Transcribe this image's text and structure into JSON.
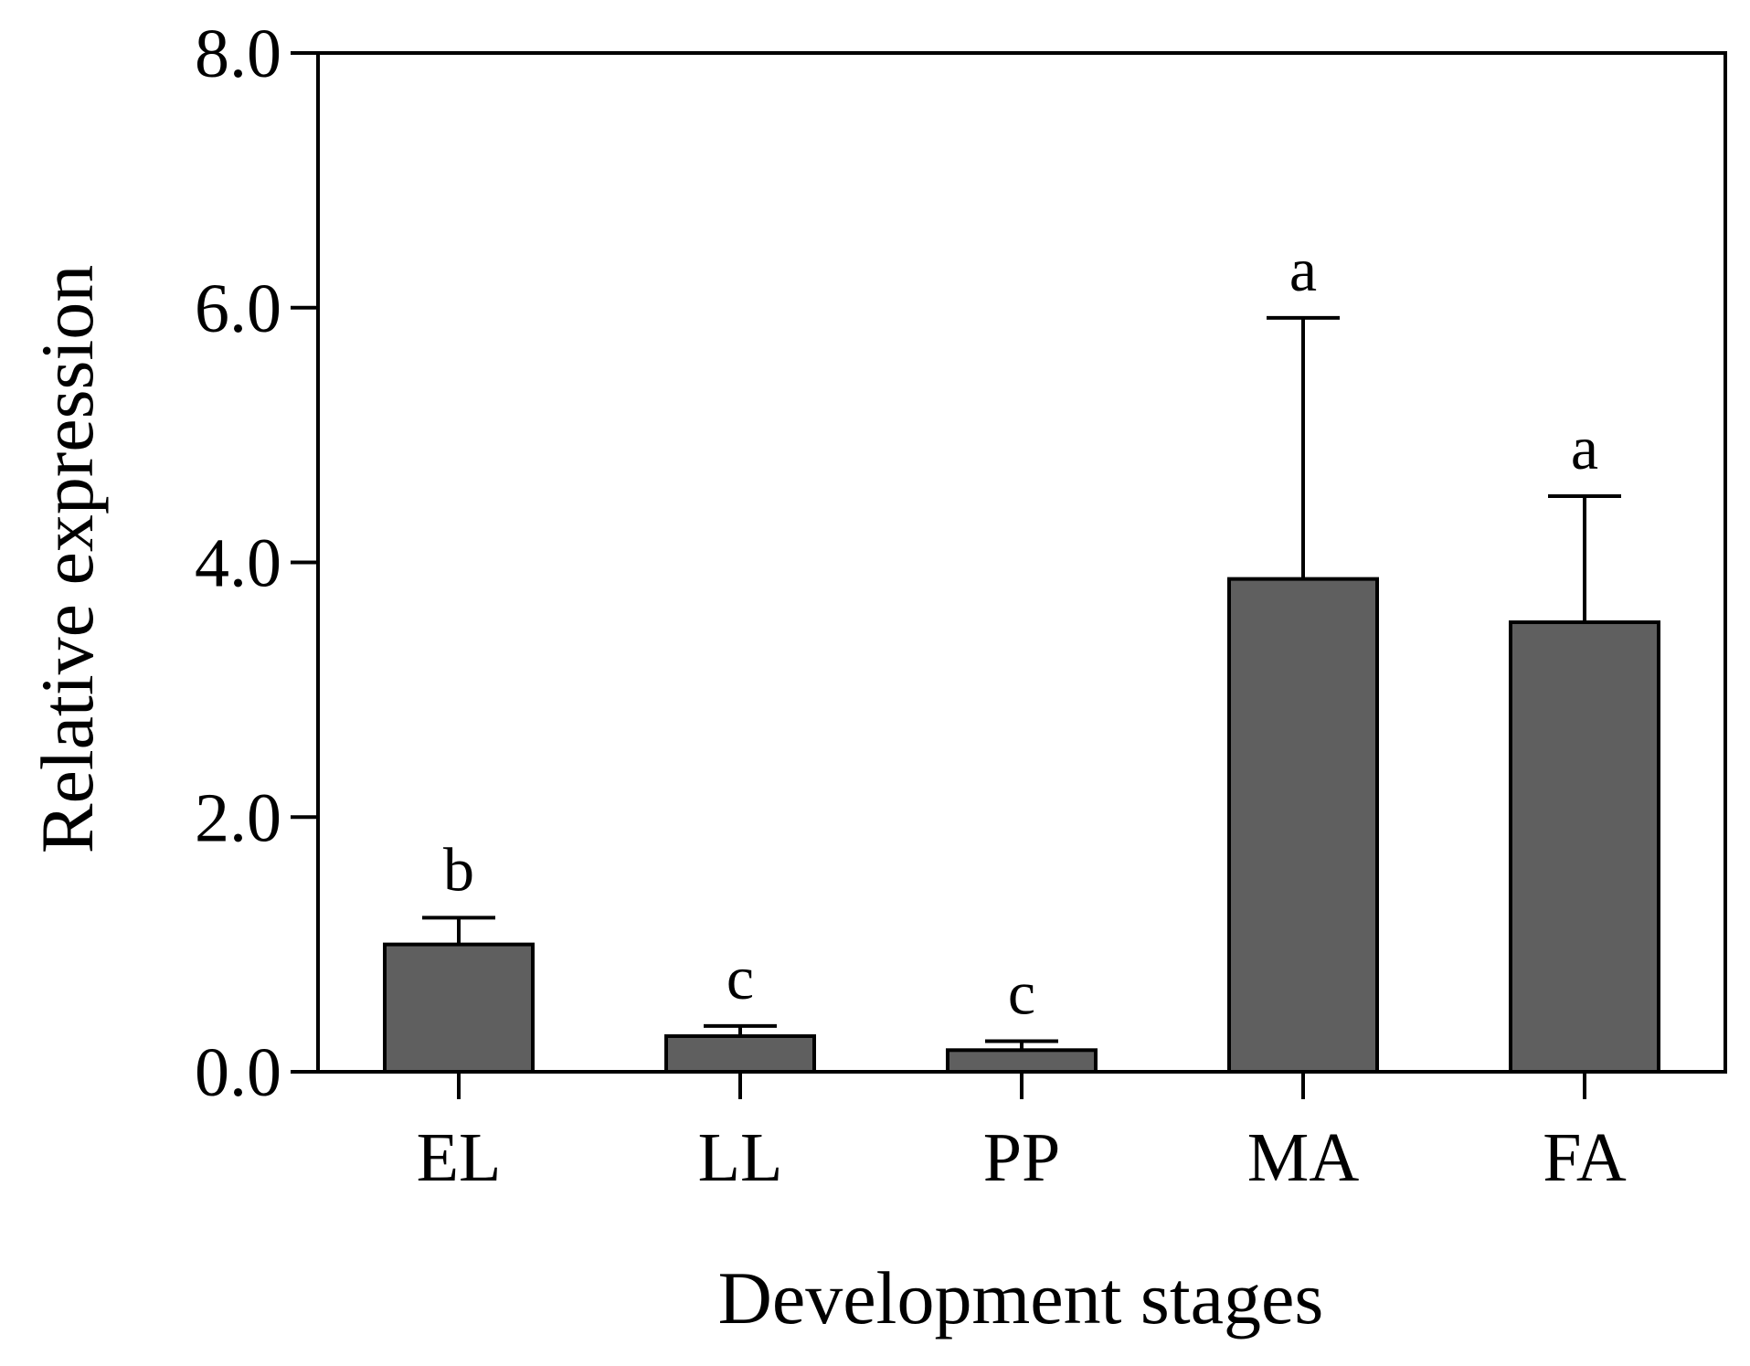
{
  "chart_data": {
    "type": "bar",
    "title": "",
    "xlabel": "Development stages",
    "ylabel": "Relative expression",
    "ylim": [
      0,
      8
    ],
    "yticks": [
      0,
      2,
      4,
      6,
      8
    ],
    "ytick_labels": [
      "0.0",
      "2.0",
      "4.0",
      "6.0",
      "8.0"
    ],
    "categories": [
      "EL",
      "LL",
      "PP",
      "MA",
      "FA"
    ],
    "values": [
      1.0,
      0.28,
      0.17,
      3.87,
      3.53
    ],
    "errors": [
      0.21,
      0.08,
      0.07,
      2.05,
      0.99
    ],
    "significance": [
      "b",
      "c",
      "c",
      "a",
      "a"
    ],
    "grid": false,
    "legend": "none",
    "colors": {
      "bar_fill": "#5f5f5f",
      "stroke": "#000000",
      "background": "#ffffff"
    }
  }
}
